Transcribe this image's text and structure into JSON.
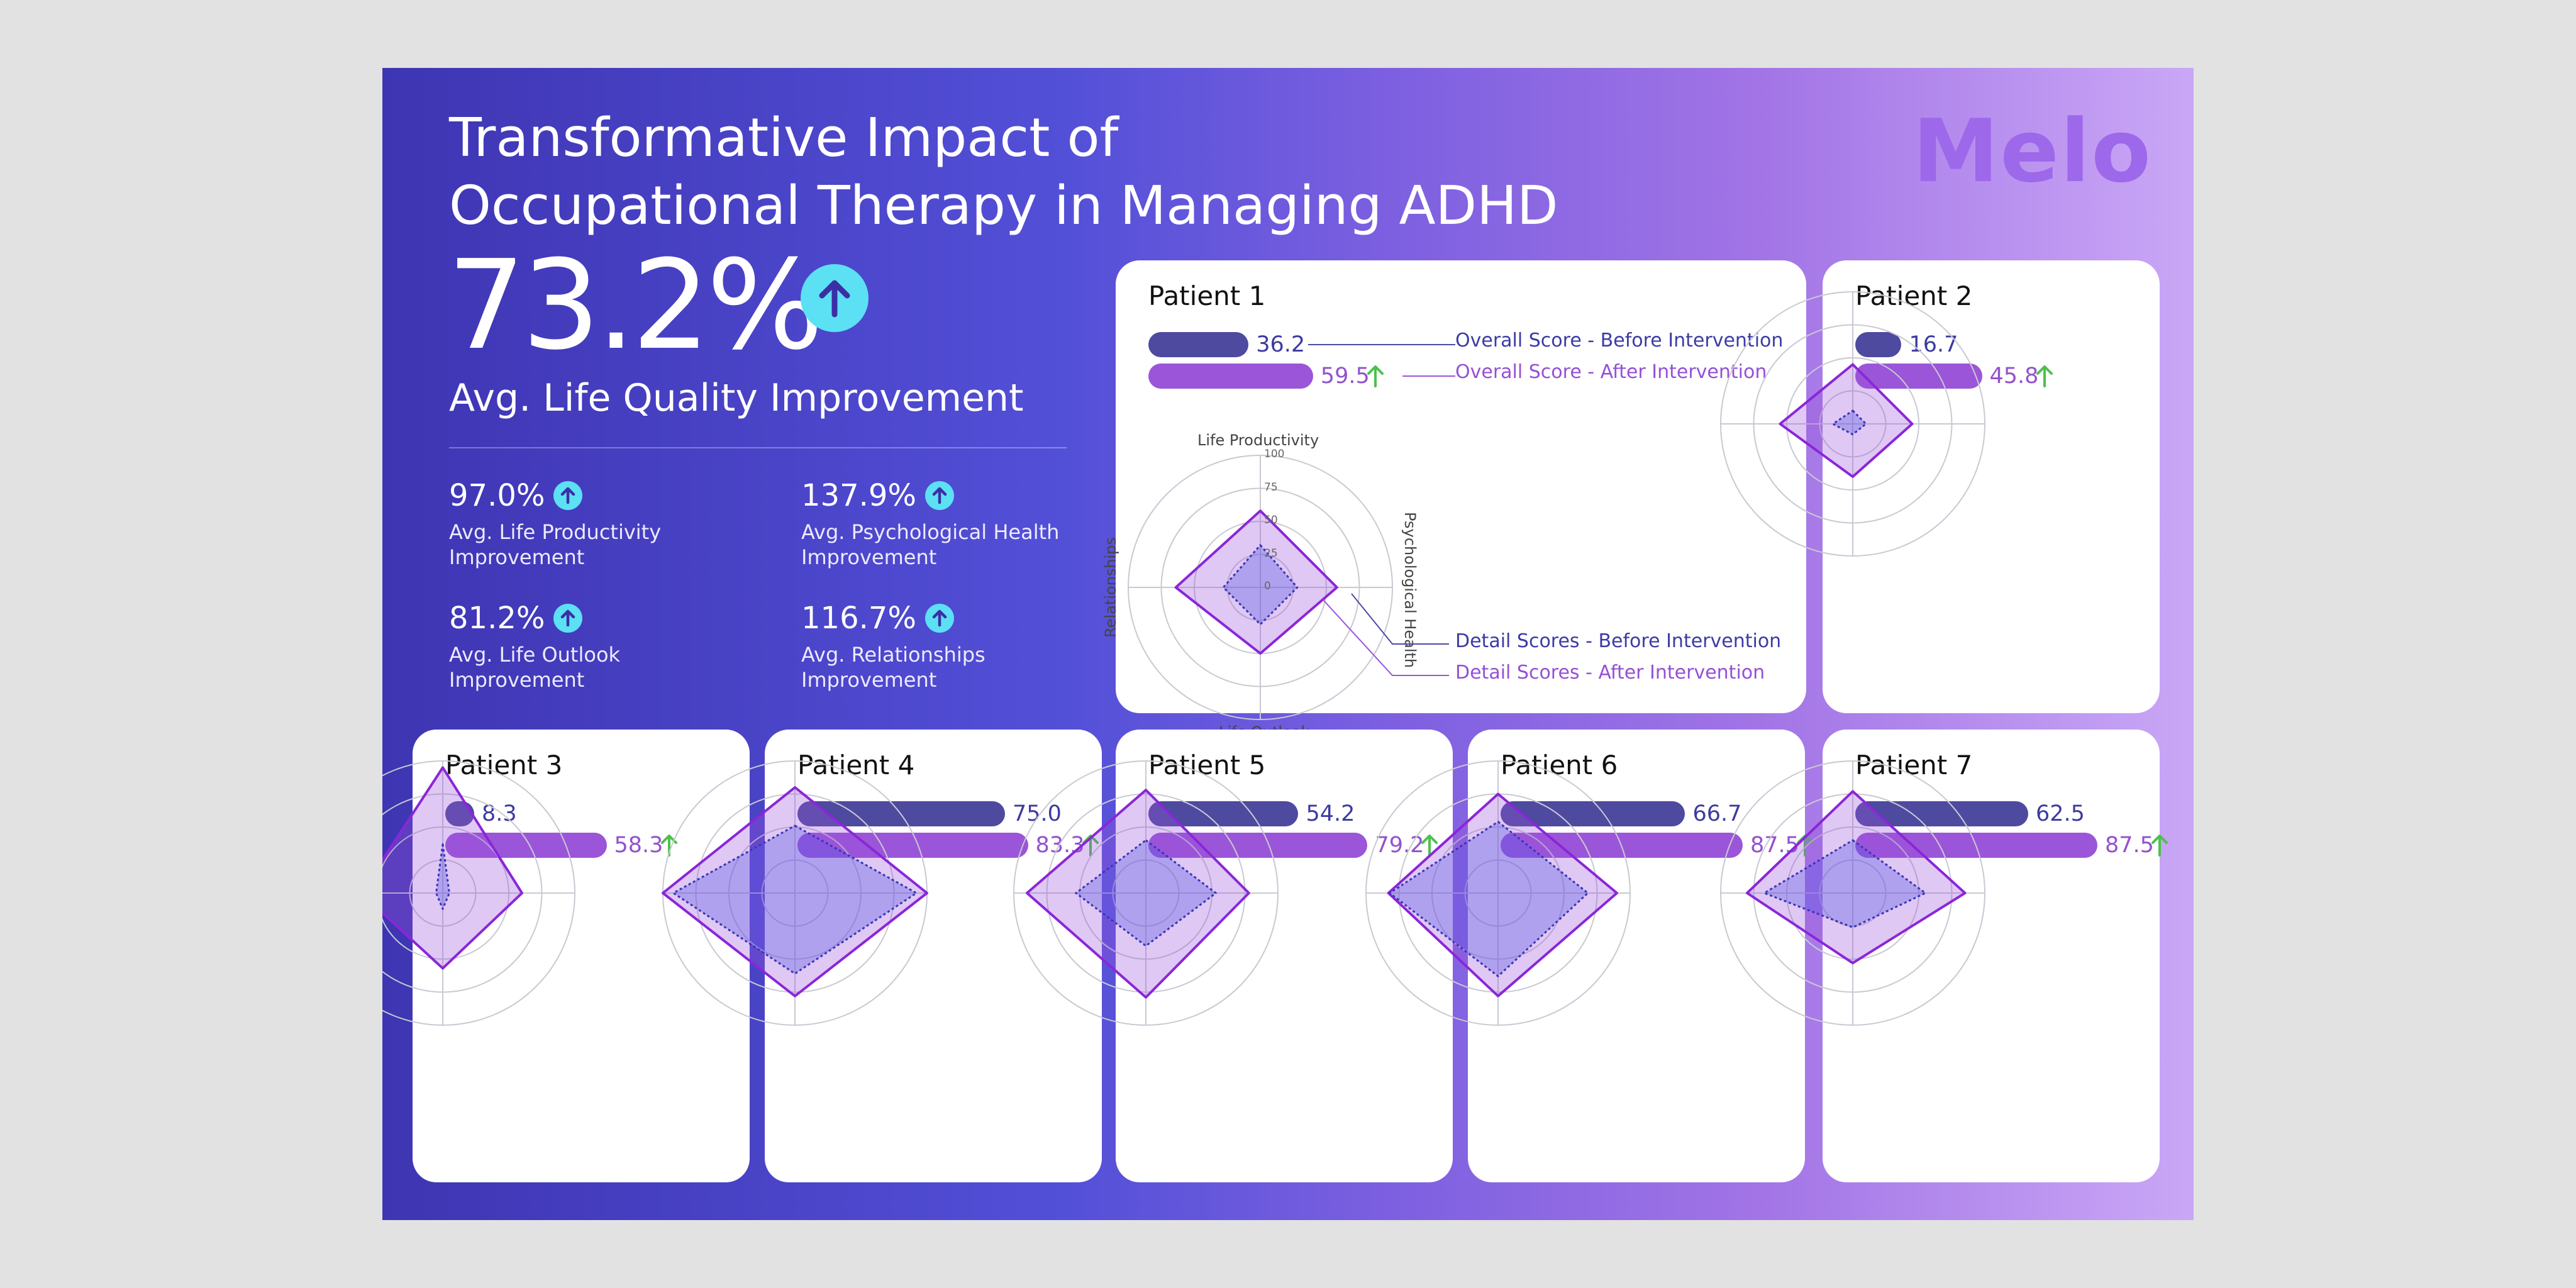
{
  "title": "Transformative Impact of\nOccupational Therapy in Managing ADHD",
  "brand": "Melo",
  "headline": {
    "value": "73.2%",
    "label": "Avg. Life Quality Improvement",
    "icon": "arrow-up-circle-icon"
  },
  "stats": [
    {
      "value": "97.0%",
      "label": "Avg. Life Productivity Improvement"
    },
    {
      "value": "137.9%",
      "label": "Avg. Psychological Health Improvement"
    },
    {
      "value": "81.2%",
      "label": "Avg. Life Outlook Improvement"
    },
    {
      "value": "116.7%",
      "label": "Avg. Relationships Improvement"
    }
  ],
  "legend": {
    "overall_before": "Overall Score - Before Intervention",
    "overall_after": "Overall Score - After Intervention",
    "detail_before": "Detail Scores - Before Intervention",
    "detail_after": "Detail Scores - After Intervention"
  },
  "colors": {
    "before": "#4d4aa0",
    "after": "#9b55d9",
    "up_arrow": "#4cc04c",
    "accent": "#5ce0f4"
  },
  "chart_data": {
    "type": "radar",
    "axes": [
      "Life Productivity",
      "Psychological Health",
      "Life Outlook",
      "Relationships"
    ],
    "r_ticks": [
      "0",
      "25",
      "50",
      "75",
      "100"
    ],
    "rlim": [
      0,
      100
    ],
    "patients": [
      {
        "name": "Patient 1",
        "overall_before": "36.2",
        "overall_after": "59.5",
        "before": [
          32,
          28,
          28,
          28
        ],
        "after": [
          58,
          58,
          50,
          64
        ]
      },
      {
        "name": "Patient 2",
        "overall_before": "16.7",
        "overall_after": "45.8",
        "before": [
          10,
          10,
          8,
          15
        ],
        "after": [
          45,
          45,
          40,
          55
        ]
      },
      {
        "name": "Patient 3",
        "overall_before": "8.3",
        "overall_after": "58.3",
        "before": [
          37,
          5,
          12,
          5
        ],
        "after": [
          95,
          60,
          57,
          62
        ]
      },
      {
        "name": "Patient 4",
        "overall_before": "75.0",
        "overall_after": "83.3",
        "before": [
          51,
          92,
          61,
          92
        ],
        "after": [
          80,
          100,
          78,
          100
        ]
      },
      {
        "name": "Patient 5",
        "overall_before": "54.2",
        "overall_after": "79.2",
        "before": [
          40,
          53,
          40,
          53
        ],
        "after": [
          78,
          78,
          79,
          90
        ]
      },
      {
        "name": "Patient 6",
        "overall_before": "66.7",
        "overall_after": "87.5",
        "before": [
          54,
          68,
          63,
          82
        ],
        "after": [
          75,
          90,
          78,
          83
        ]
      },
      {
        "name": "Patient 7",
        "overall_before": "62.5",
        "overall_after": "87.5",
        "before": [
          40,
          55,
          26,
          67
        ],
        "after": [
          77,
          85,
          53,
          80
        ]
      }
    ]
  }
}
